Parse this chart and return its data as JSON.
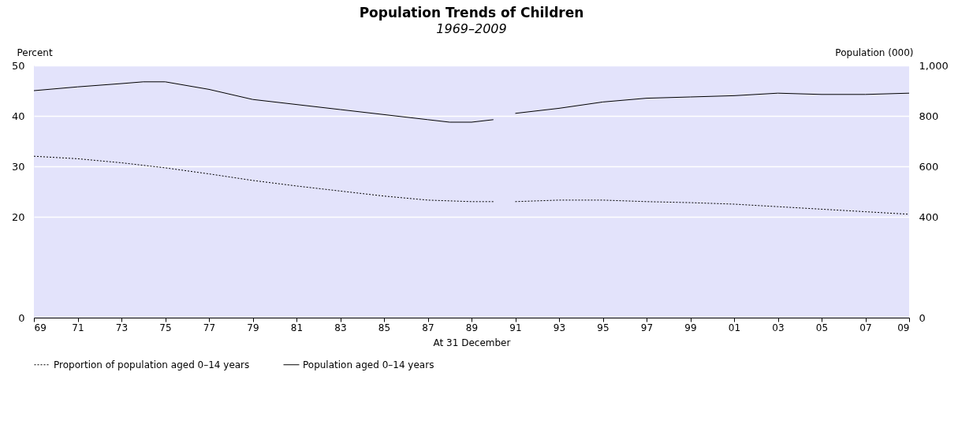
{
  "chart_data": {
    "type": "line",
    "title": "Population Trends of Children",
    "subtitle": "1969–2009",
    "xlabel": "At 31 December",
    "ylabel": "Percent",
    "y2label": "Population (000)",
    "xlim": [
      1969,
      2009
    ],
    "xticks": [
      {
        "value": 1969,
        "label": "69"
      },
      {
        "value": 1971,
        "label": "71"
      },
      {
        "value": 1973,
        "label": "73"
      },
      {
        "value": 1975,
        "label": "75"
      },
      {
        "value": 1977,
        "label": "77"
      },
      {
        "value": 1979,
        "label": "79"
      },
      {
        "value": 1981,
        "label": "81"
      },
      {
        "value": 1983,
        "label": "83"
      },
      {
        "value": 1985,
        "label": "85"
      },
      {
        "value": 1987,
        "label": "87"
      },
      {
        "value": 1989,
        "label": "89"
      },
      {
        "value": 1991,
        "label": "91"
      },
      {
        "value": 1993,
        "label": "93"
      },
      {
        "value": 1995,
        "label": "95"
      },
      {
        "value": 1997,
        "label": "97"
      },
      {
        "value": 1999,
        "label": "99"
      },
      {
        "value": 2001,
        "label": "01"
      },
      {
        "value": 2003,
        "label": "03"
      },
      {
        "value": 2005,
        "label": "05"
      },
      {
        "value": 2007,
        "label": "07"
      },
      {
        "value": 2009,
        "label": "09"
      }
    ],
    "ylim": [
      0,
      50
    ],
    "yticks": [
      0,
      20,
      30,
      40,
      50
    ],
    "y2lim": [
      0,
      1000
    ],
    "y2ticks": [
      0,
      400,
      600,
      800,
      {
        "value": 1000,
        "label": "1,000"
      }
    ],
    "grid": "y",
    "legend": "bottom",
    "marker": "none",
    "series": [
      {
        "name": "Proportion of population aged 0–14 years",
        "color": "#000000",
        "line_style": "dotted",
        "x": [
          1969,
          1971,
          1973,
          1975,
          1977,
          1979,
          1981,
          1983,
          1985,
          1987,
          1989,
          1990,
          1990.5,
          1991,
          1993,
          1995,
          1997,
          1999,
          2001,
          2003,
          2005,
          2007,
          2009
        ],
        "values": [
          32,
          31.5,
          30.7,
          29.7,
          28.5,
          27.2,
          26.1,
          25.1,
          24.1,
          23.3,
          23,
          23,
          null,
          23,
          23.3,
          23.3,
          23,
          22.8,
          22.5,
          22,
          21.5,
          21,
          20.5
        ]
      },
      {
        "name": "Population aged 0–14 years",
        "color": "#000000",
        "line_style": "solid",
        "axis": "y2",
        "x": [
          1969,
          1971,
          1973,
          1974,
          1975,
          1977,
          1979,
          1981,
          1983,
          1985,
          1987,
          1988,
          1989,
          1990,
          1990.5,
          1991,
          1993,
          1995,
          1997,
          1999,
          2001,
          2003,
          2005,
          2007,
          2009
        ],
        "values": [
          900,
          915,
          928,
          935,
          935,
          905,
          865,
          845,
          825,
          805,
          785,
          775,
          775,
          785,
          null,
          810,
          830,
          855,
          870,
          875,
          880,
          890,
          885,
          885,
          890
        ]
      }
    ]
  }
}
